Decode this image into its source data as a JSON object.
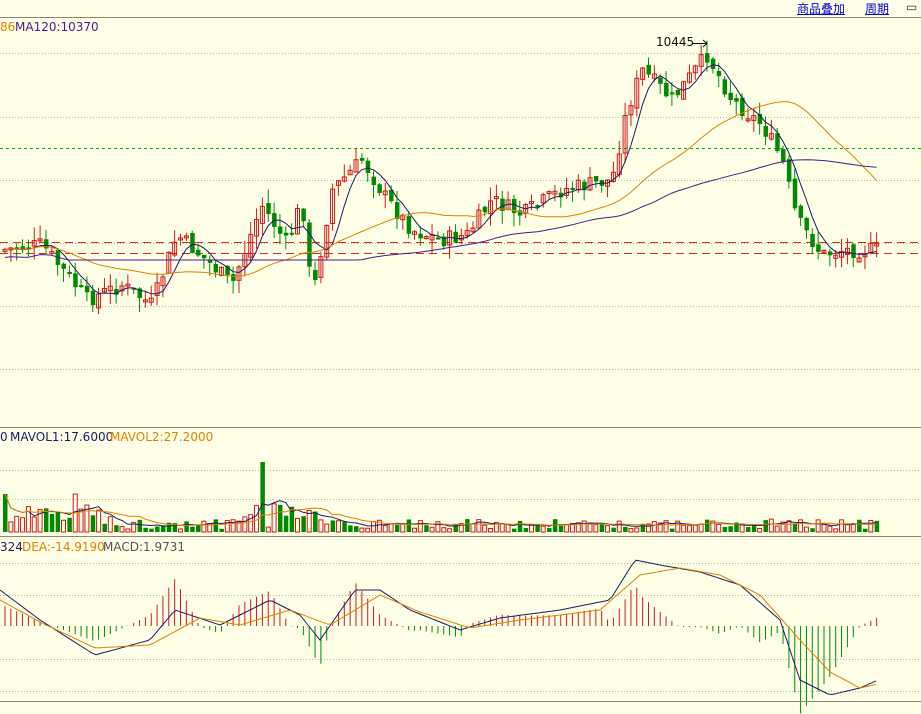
{
  "toolbar": {
    "overlay_label": "商品叠加",
    "period_label": "周期"
  },
  "main_panel": {
    "ma120_prefix": "86",
    "ma120_label": "MA120:10370",
    "peak_label": "10445"
  },
  "volume_panel": {
    "prefix": "0",
    "mavol1_label": "MAVOL1:17.6000",
    "mavol2_label": "MAVOL2:27.2000"
  },
  "macd_panel": {
    "prefix": "324",
    "dea_label": "DEA:-14.9190",
    "macd_label": "MACD:1.9731"
  },
  "colors": {
    "background": "#ffffe8",
    "up": "#d01818",
    "down": "#008a00",
    "ma_dark": "#1a1a66",
    "ma_orange": "#e08000",
    "ma_purple": "#4b1a8c",
    "label_dark": "#1a1a66",
    "label_orange": "#e08000",
    "grid": "#b8b89a",
    "support_dashed": "#d03020",
    "green_dashed": "#00b000"
  },
  "chart_data": {
    "type": "candlestick",
    "peak": 10445,
    "ma120_last": 10370,
    "mavol1_last": 17.6,
    "mavol2_last": 27.2,
    "dea_last": -14.919,
    "macd_last": 1.9731
  }
}
